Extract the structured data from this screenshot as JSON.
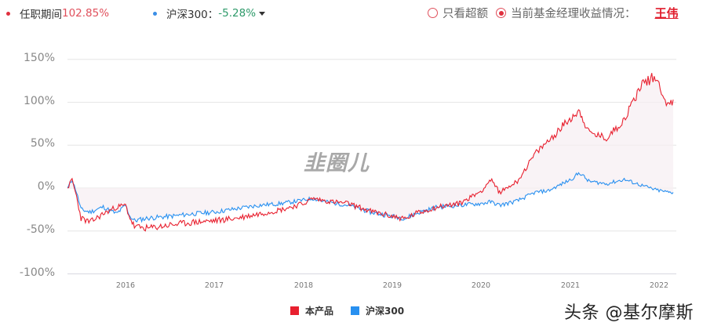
{
  "header": {
    "series1_label": "任职期间",
    "series1_value": "102.85%",
    "series2_label": "沪深300：",
    "series2_value": "-5.28%",
    "option_excess": "只看超额",
    "option_current": "当前基金经理收益情况：",
    "manager_name": "王伟"
  },
  "legend": {
    "product": "本产品",
    "index": "沪深300"
  },
  "watermark": "韭圈儿",
  "brand": "头条 @基尔摩斯",
  "colors": {
    "product": "#e8202f",
    "index": "#2890f0",
    "positive_text": "#e0505c",
    "negative_text": "#2e9a6a",
    "grid": "#e6e6e6"
  },
  "chart_data": {
    "type": "line",
    "title": "",
    "xlabel": "",
    "ylabel": "",
    "ylim": [
      -100,
      150
    ],
    "yticks": [
      "150%",
      "100%",
      "50%",
      "0%",
      "-50%",
      "-100%"
    ],
    "xticks": [
      "2016",
      "2017",
      "2018",
      "2019",
      "2020",
      "2021",
      "2022"
    ],
    "grid": true,
    "legend_position": "bottom",
    "x": [
      2015.35,
      2015.4,
      2015.45,
      2015.5,
      2015.6,
      2015.75,
      2015.9,
      2016.0,
      2016.05,
      2016.1,
      2016.25,
      2016.5,
      2016.75,
      2017.0,
      2017.25,
      2017.5,
      2017.75,
      2018.0,
      2018.1,
      2018.25,
      2018.5,
      2018.75,
      2019.0,
      2019.15,
      2019.25,
      2019.5,
      2019.75,
      2020.0,
      2020.1,
      2020.2,
      2020.4,
      2020.6,
      2020.75,
      2021.0,
      2021.1,
      2021.2,
      2021.4,
      2021.6,
      2021.8,
      2021.95,
      2022.1,
      2022.15
    ],
    "series": [
      {
        "name": "本产品",
        "color": "#e8202f",
        "values": [
          0,
          10,
          -10,
          -35,
          -40,
          -30,
          -22,
          -20,
          -35,
          -45,
          -47,
          -43,
          -40,
          -38,
          -35,
          -30,
          -25,
          -18,
          -12,
          -15,
          -18,
          -27,
          -33,
          -36,
          -30,
          -22,
          -18,
          -3,
          10,
          -5,
          8,
          40,
          55,
          82,
          90,
          65,
          58,
          80,
          122,
          130,
          95,
          103
        ]
      },
      {
        "name": "沪深300",
        "color": "#2890f0",
        "values": [
          0,
          10,
          -5,
          -25,
          -28,
          -22,
          -30,
          -20,
          -33,
          -38,
          -35,
          -33,
          -30,
          -28,
          -24,
          -20,
          -18,
          -14,
          -12,
          -16,
          -20,
          -28,
          -33,
          -35,
          -30,
          -22,
          -20,
          -18,
          -16,
          -20,
          -15,
          -5,
          -3,
          10,
          18,
          8,
          5,
          10,
          3,
          -2,
          -5,
          -5
        ]
      }
    ]
  }
}
